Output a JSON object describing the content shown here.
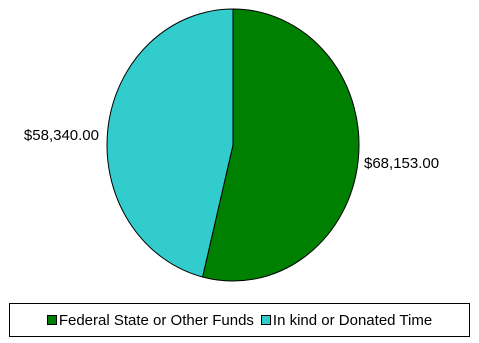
{
  "chart_data": {
    "type": "pie",
    "title": "",
    "series": [
      {
        "name": "Federal State or Other Funds",
        "value": 68153.0,
        "label": "$68,153.00",
        "color": "#008000"
      },
      {
        "name": "In kind or Donated Time",
        "value": 58340.0,
        "label": "$58,340.00",
        "color": "#33CCCC"
      }
    ],
    "legend_position": "bottom",
    "start_angle_deg": 0,
    "direction": "clockwise"
  }
}
